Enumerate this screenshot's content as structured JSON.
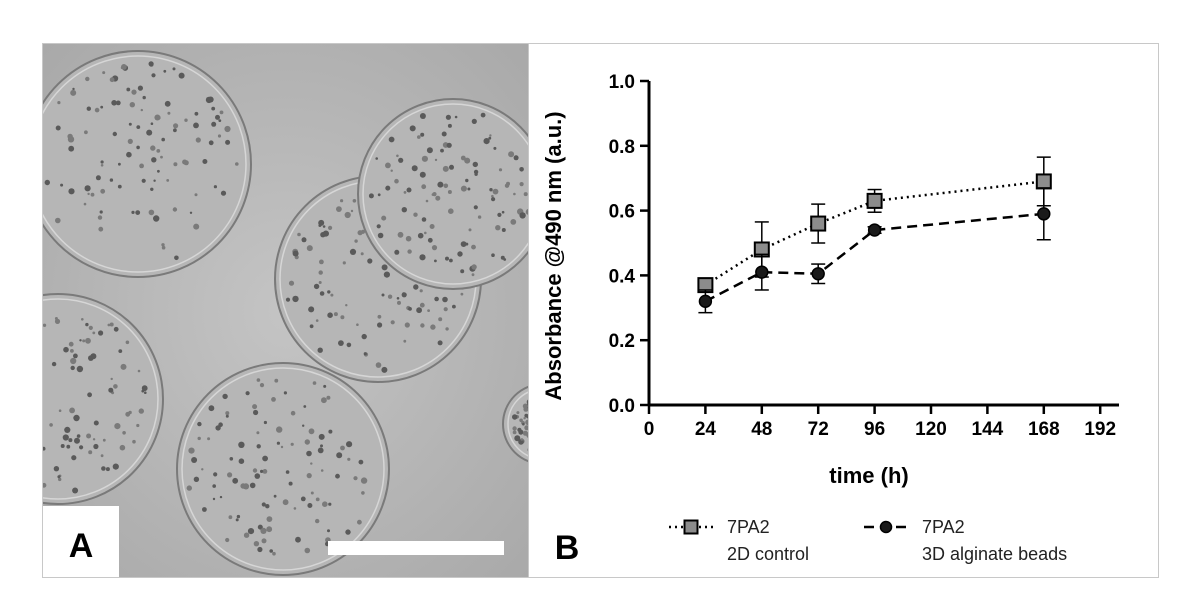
{
  "panel_a": {
    "label": "A"
  },
  "panel_b": {
    "label": "B"
  },
  "chart_data": {
    "type": "line",
    "xlabel": "time (h)",
    "ylabel": "Absorbance @490 nm (a.u.)",
    "xlim": [
      0,
      200
    ],
    "ylim": [
      0,
      1.0
    ],
    "x_ticks": [
      0,
      24,
      48,
      72,
      96,
      120,
      144,
      168,
      192
    ],
    "y_ticks": [
      0.0,
      0.2,
      0.4,
      0.6,
      0.8,
      1.0
    ],
    "x_tick_labels": [
      "0",
      "24",
      "48",
      "72",
      "96",
      "120",
      "144",
      "168",
      "192"
    ],
    "y_tick_labels": [
      "0.0",
      "0.2",
      "0.4",
      "0.6",
      "0.8",
      "1.0"
    ],
    "grid": false,
    "legend_placement": "bottom",
    "series": [
      {
        "name": "7PA2 2D control",
        "legend_line1": "7PA2",
        "legend_line2": "2D control",
        "marker": "square",
        "line_style": "dotted",
        "color": "#000000",
        "marker_fill": "#8c8c8c",
        "x": [
          24,
          48,
          72,
          96,
          168
        ],
        "y": [
          0.37,
          0.48,
          0.56,
          0.63,
          0.69
        ],
        "err": [
          0.02,
          0.085,
          0.06,
          0.035,
          0.075
        ]
      },
      {
        "name": "7PA2 3D alginate beads",
        "legend_line1": "7PA2",
        "legend_line2": "3D alginate beads",
        "marker": "circle",
        "line_style": "dashed",
        "color": "#000000",
        "marker_fill": "#1a1a1a",
        "x": [
          24,
          48,
          72,
          96,
          168
        ],
        "y": [
          0.32,
          0.41,
          0.405,
          0.54,
          0.59
        ],
        "err": [
          0.035,
          0.055,
          0.03,
          0.01,
          0.08
        ]
      }
    ]
  }
}
